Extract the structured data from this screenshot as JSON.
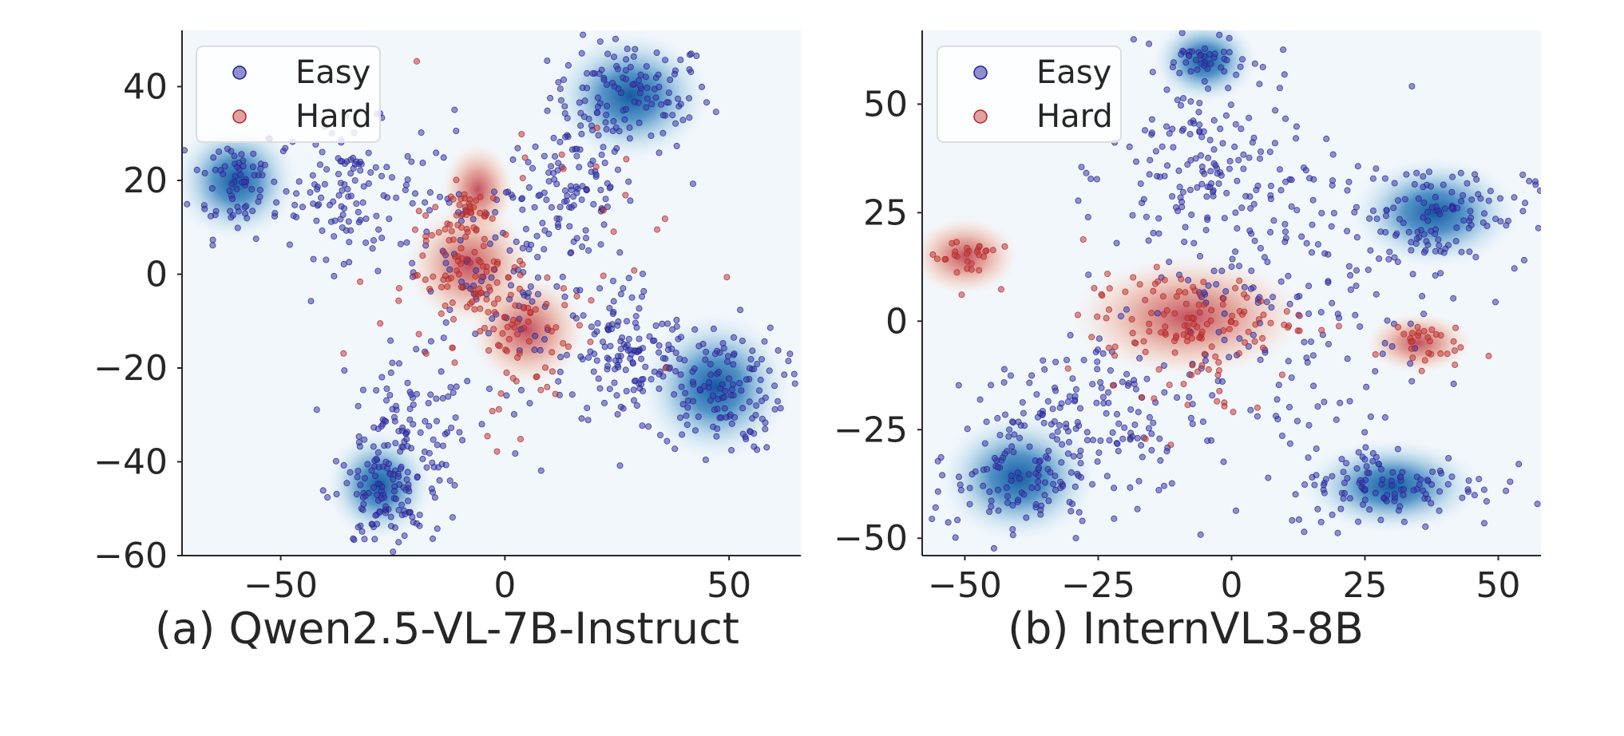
{
  "figure": {
    "panels": [
      {
        "caption": "(a) Qwen2.5-VL-7B-Instruct",
        "legend": [
          {
            "label": "Easy",
            "color": "#1f1f8f"
          },
          {
            "label": "Hard",
            "color": "#b22222"
          }
        ]
      },
      {
        "caption": "(b) InternVL3-8B",
        "legend": [
          {
            "label": "Easy",
            "color": "#1f1f8f"
          },
          {
            "label": "Hard",
            "color": "#b22222"
          }
        ]
      }
    ]
  },
  "chart_data": [
    {
      "type": "scatter",
      "title": "",
      "xlabel": "",
      "ylabel": "",
      "xlim": [
        -72,
        66
      ],
      "ylim": [
        -60,
        52
      ],
      "xticks": [
        -50,
        0,
        50
      ],
      "yticks": [
        -60,
        -40,
        -20,
        0,
        20,
        40
      ],
      "grid": false,
      "legend_position": "top-left",
      "overlay": "kde-density",
      "colors": {
        "easy_density": "#2b7bba",
        "hard_density": "#d6604d",
        "easy_points": "#1f1f8f",
        "hard_points": "#b22222"
      },
      "series": [
        {
          "name": "Easy",
          "clusters": [
            {
              "x": 28,
              "y": 38,
              "sx": 9,
              "sy": 6,
              "n": 120
            },
            {
              "x": -60,
              "y": 20,
              "sx": 5,
              "sy": 6,
              "n": 70
            },
            {
              "x": -35,
              "y": 18,
              "sx": 8,
              "sy": 7,
              "n": 110
            },
            {
              "x": 15,
              "y": 18,
              "sx": 7,
              "sy": 7,
              "n": 80
            },
            {
              "x": -22,
              "y": -38,
              "sx": 7,
              "sy": 9,
              "n": 130
            },
            {
              "x": -28,
              "y": -48,
              "sx": 5,
              "sy": 5,
              "n": 70
            },
            {
              "x": 27,
              "y": -18,
              "sx": 7,
              "sy": 8,
              "n": 120
            },
            {
              "x": 48,
              "y": -24,
              "sx": 7,
              "sy": 7,
              "n": 130
            },
            {
              "x": 0,
              "y": 0,
              "sx": 16,
              "sy": 16,
              "n": 160
            }
          ]
        },
        {
          "name": "Hard",
          "clusters": [
            {
              "x": -8,
              "y": 0,
              "sx": 7,
              "sy": 6,
              "n": 80
            },
            {
              "x": -8,
              "y": 14,
              "sx": 2,
              "sy": 2,
              "n": 30
            },
            {
              "x": 5,
              "y": -14,
              "sx": 7,
              "sy": 7,
              "n": 60
            },
            {
              "x": 0,
              "y": 5,
              "sx": 18,
              "sy": 18,
              "n": 40
            }
          ]
        }
      ],
      "density": [
        {
          "class": "easy",
          "x": 28,
          "y": 38,
          "rx": 18,
          "ry": 14
        },
        {
          "class": "easy",
          "x": -60,
          "y": 20,
          "rx": 14,
          "ry": 13
        },
        {
          "class": "easy",
          "x": -28,
          "y": -45,
          "rx": 12,
          "ry": 12
        },
        {
          "class": "easy",
          "x": 47,
          "y": -24,
          "rx": 17,
          "ry": 16
        },
        {
          "class": "hard",
          "x": -8,
          "y": 2,
          "rx": 14,
          "ry": 13
        },
        {
          "class": "hard",
          "x": 5,
          "y": -12,
          "rx": 13,
          "ry": 12
        },
        {
          "class": "hard",
          "x": -6,
          "y": 18,
          "rx": 8,
          "ry": 10
        }
      ]
    },
    {
      "type": "scatter",
      "title": "",
      "xlabel": "",
      "ylabel": "",
      "xlim": [
        -58,
        58
      ],
      "ylim": [
        -54,
        67
      ],
      "xticks": [
        -50,
        -25,
        0,
        25,
        50
      ],
      "yticks": [
        -50,
        -25,
        0,
        25,
        50
      ],
      "grid": false,
      "legend_position": "top-left",
      "overlay": "kde-density",
      "colors": {
        "easy_density": "#2b7bba",
        "hard_density": "#d6604d",
        "easy_points": "#1f1f8f",
        "hard_points": "#b22222"
      },
      "series": [
        {
          "name": "Easy",
          "clusters": [
            {
              "x": -5,
              "y": 60,
              "sx": 4,
              "sy": 2,
              "n": 40
            },
            {
              "x": -5,
              "y": 35,
              "sx": 9,
              "sy": 12,
              "n": 150
            },
            {
              "x": 38,
              "y": 25,
              "sx": 9,
              "sy": 6,
              "n": 120
            },
            {
              "x": -40,
              "y": -35,
              "sx": 8,
              "sy": 8,
              "n": 130
            },
            {
              "x": -25,
              "y": -20,
              "sx": 10,
              "sy": 10,
              "n": 120
            },
            {
              "x": 30,
              "y": -38,
              "sx": 10,
              "sy": 5,
              "n": 120
            },
            {
              "x": 10,
              "y": 5,
              "sx": 15,
              "sy": 18,
              "n": 180
            }
          ]
        },
        {
          "name": "Hard",
          "clusters": [
            {
              "x": -8,
              "y": 1,
              "sx": 10,
              "sy": 5,
              "n": 100
            },
            {
              "x": -50,
              "y": 15,
              "sx": 3,
              "sy": 3,
              "n": 30
            },
            {
              "x": 35,
              "y": -5,
              "sx": 4,
              "sy": 3,
              "n": 30
            },
            {
              "x": -8,
              "y": -10,
              "sx": 10,
              "sy": 8,
              "n": 40
            }
          ]
        }
      ],
      "density": [
        {
          "class": "easy",
          "x": -5,
          "y": 60,
          "rx": 10,
          "ry": 10
        },
        {
          "class": "easy",
          "x": 38,
          "y": 25,
          "rx": 16,
          "ry": 13
        },
        {
          "class": "easy",
          "x": -40,
          "y": -36,
          "rx": 15,
          "ry": 15
        },
        {
          "class": "easy",
          "x": 30,
          "y": -38,
          "rx": 17,
          "ry": 11
        },
        {
          "class": "hard",
          "x": -8,
          "y": 1,
          "rx": 22,
          "ry": 14
        },
        {
          "class": "hard",
          "x": -50,
          "y": 15,
          "rx": 10,
          "ry": 9
        },
        {
          "class": "hard",
          "x": 35,
          "y": -5,
          "rx": 10,
          "ry": 7
        }
      ]
    }
  ]
}
